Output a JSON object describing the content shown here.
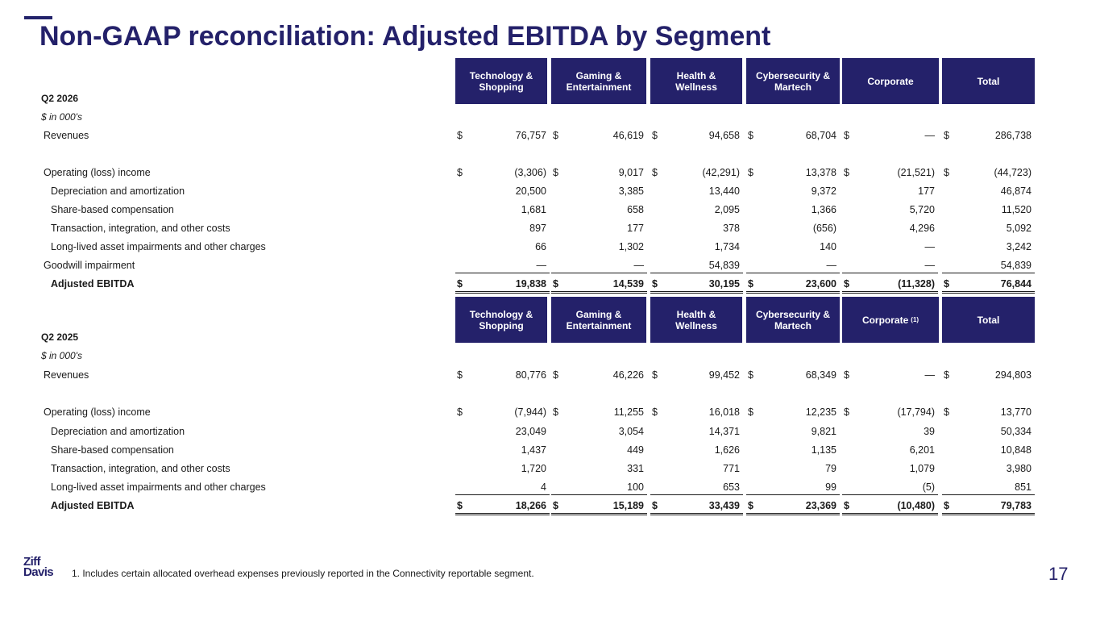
{
  "page": {
    "title": "Non-GAAP reconciliation: Adjusted EBITDA by Segment",
    "page_number": "17",
    "footnote": "1. Includes certain allocated overhead expenses previously reported in the Connectivity reportable segment.",
    "logo": {
      "line1": "Ziff",
      "line2": "Davis"
    },
    "brand_color": "#24216a"
  },
  "sections": [
    {
      "period": "Q2 2026",
      "units": "$ in 000's",
      "columns": [
        {
          "label": "Technology &\nShopping",
          "sup": ""
        },
        {
          "label": "Gaming &\nEntertainment",
          "sup": ""
        },
        {
          "label": "Health &\nWellness",
          "sup": ""
        },
        {
          "label": "Cybersecurity &\nMartech",
          "sup": ""
        },
        {
          "label": "Corporate",
          "sup": ""
        },
        {
          "label": "Total",
          "sup": ""
        }
      ],
      "rows": [
        {
          "label": "Revenues",
          "values": [
            "76,757",
            "46,619",
            "94,658",
            "68,704",
            "—",
            "286,738"
          ]
        },
        {
          "label": "Operating (loss) income",
          "values": [
            "(3,306)",
            "9,017",
            "(42,291)",
            "13,378",
            "(21,521)",
            "(44,723)"
          ]
        },
        {
          "label": "Depreciation and amortization",
          "values": [
            "20,500",
            "3,385",
            "13,440",
            "9,372",
            "177",
            "46,874"
          ]
        },
        {
          "label": "Share-based compensation",
          "values": [
            "1,681",
            "658",
            "2,095",
            "1,366",
            "5,720",
            "11,520"
          ]
        },
        {
          "label": "Transaction, integration, and other costs",
          "values": [
            "897",
            "177",
            "378",
            "(656)",
            "4,296",
            "5,092"
          ]
        },
        {
          "label": "Long-lived asset impairments and other charges",
          "values": [
            "66",
            "1,302",
            "1,734",
            "140",
            "—",
            "3,242"
          ]
        },
        {
          "label": "Goodwill impairment",
          "values": [
            "—",
            "—",
            "54,839",
            "—",
            "—",
            "54,839"
          ]
        },
        {
          "label": "Adjusted EBITDA",
          "values": [
            "19,838",
            "14,539",
            "30,195",
            "23,600",
            "(11,328)",
            "76,844"
          ]
        }
      ]
    },
    {
      "period": "Q2 2025",
      "units": "$ in 000's",
      "columns": [
        {
          "label": "Technology &\nShopping",
          "sup": ""
        },
        {
          "label": "Gaming &\nEntertainment",
          "sup": ""
        },
        {
          "label": "Health &\nWellness",
          "sup": ""
        },
        {
          "label": "Cybersecurity &\nMartech",
          "sup": ""
        },
        {
          "label": "Corporate",
          "sup": "(1)"
        },
        {
          "label": "Total",
          "sup": ""
        }
      ],
      "rows": [
        {
          "label": "Revenues",
          "values": [
            "80,776",
            "46,226",
            "99,452",
            "68,349",
            "—",
            "294,803"
          ]
        },
        {
          "label": "Operating (loss) income",
          "values": [
            "(7,944)",
            "11,255",
            "16,018",
            "12,235",
            "(17,794)",
            "13,770"
          ]
        },
        {
          "label": "Depreciation and amortization",
          "values": [
            "23,049",
            "3,054",
            "14,371",
            "9,821",
            "39",
            "50,334"
          ]
        },
        {
          "label": "Share-based compensation",
          "values": [
            "1,437",
            "449",
            "1,626",
            "1,135",
            "6,201",
            "10,848"
          ]
        },
        {
          "label": "Transaction, integration, and other costs",
          "values": [
            "1,720",
            "331",
            "771",
            "79",
            "1,079",
            "3,980"
          ]
        },
        {
          "label": "Long-lived asset impairments and other charges",
          "values": [
            "4",
            "100",
            "653",
            "99",
            "(5)",
            "851"
          ]
        },
        {
          "label": "Adjusted EBITDA",
          "values": [
            "18,266",
            "15,189",
            "33,439",
            "23,369",
            "(10,480)",
            "79,783"
          ]
        }
      ]
    }
  ],
  "dollar_sign": "$"
}
